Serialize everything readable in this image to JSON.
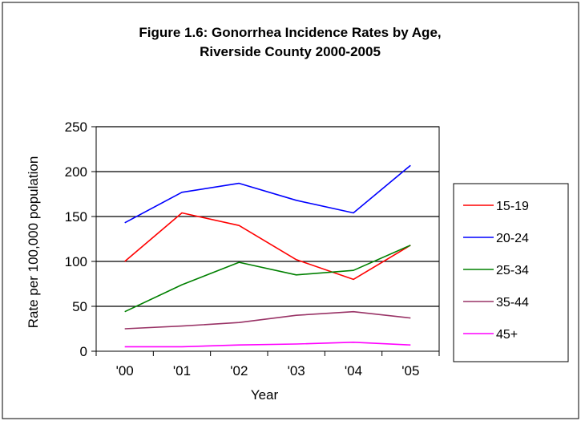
{
  "chart_data": {
    "type": "line",
    "title": "Figure 1.6: Gonorrhea Incidence Rates by Age,",
    "subtitle": "Riverside County 2000-2005",
    "xlabel": "Year",
    "ylabel": "Rate per 100,000 population",
    "categories": [
      "'00",
      "'01",
      "'02",
      "'03",
      "'04",
      "'05"
    ],
    "ylim": [
      0,
      250
    ],
    "yticks": [
      0,
      50,
      100,
      150,
      200,
      250
    ],
    "grid": true,
    "legend_position": "right",
    "series": [
      {
        "name": "15-19",
        "color": "#ff0000",
        "values": [
          100,
          154,
          140,
          102,
          80,
          118
        ]
      },
      {
        "name": "20-24",
        "color": "#0000ff",
        "values": [
          143,
          177,
          187,
          168,
          154,
          207
        ]
      },
      {
        "name": "25-34",
        "color": "#008000",
        "values": [
          44,
          74,
          99,
          85,
          90,
          118
        ]
      },
      {
        "name": "35-44",
        "color": "#993366",
        "values": [
          25,
          28,
          32,
          40,
          44,
          37
        ]
      },
      {
        "name": "45+",
        "color": "#ff00ff",
        "values": [
          5,
          5,
          7,
          8,
          10,
          7
        ]
      }
    ]
  }
}
